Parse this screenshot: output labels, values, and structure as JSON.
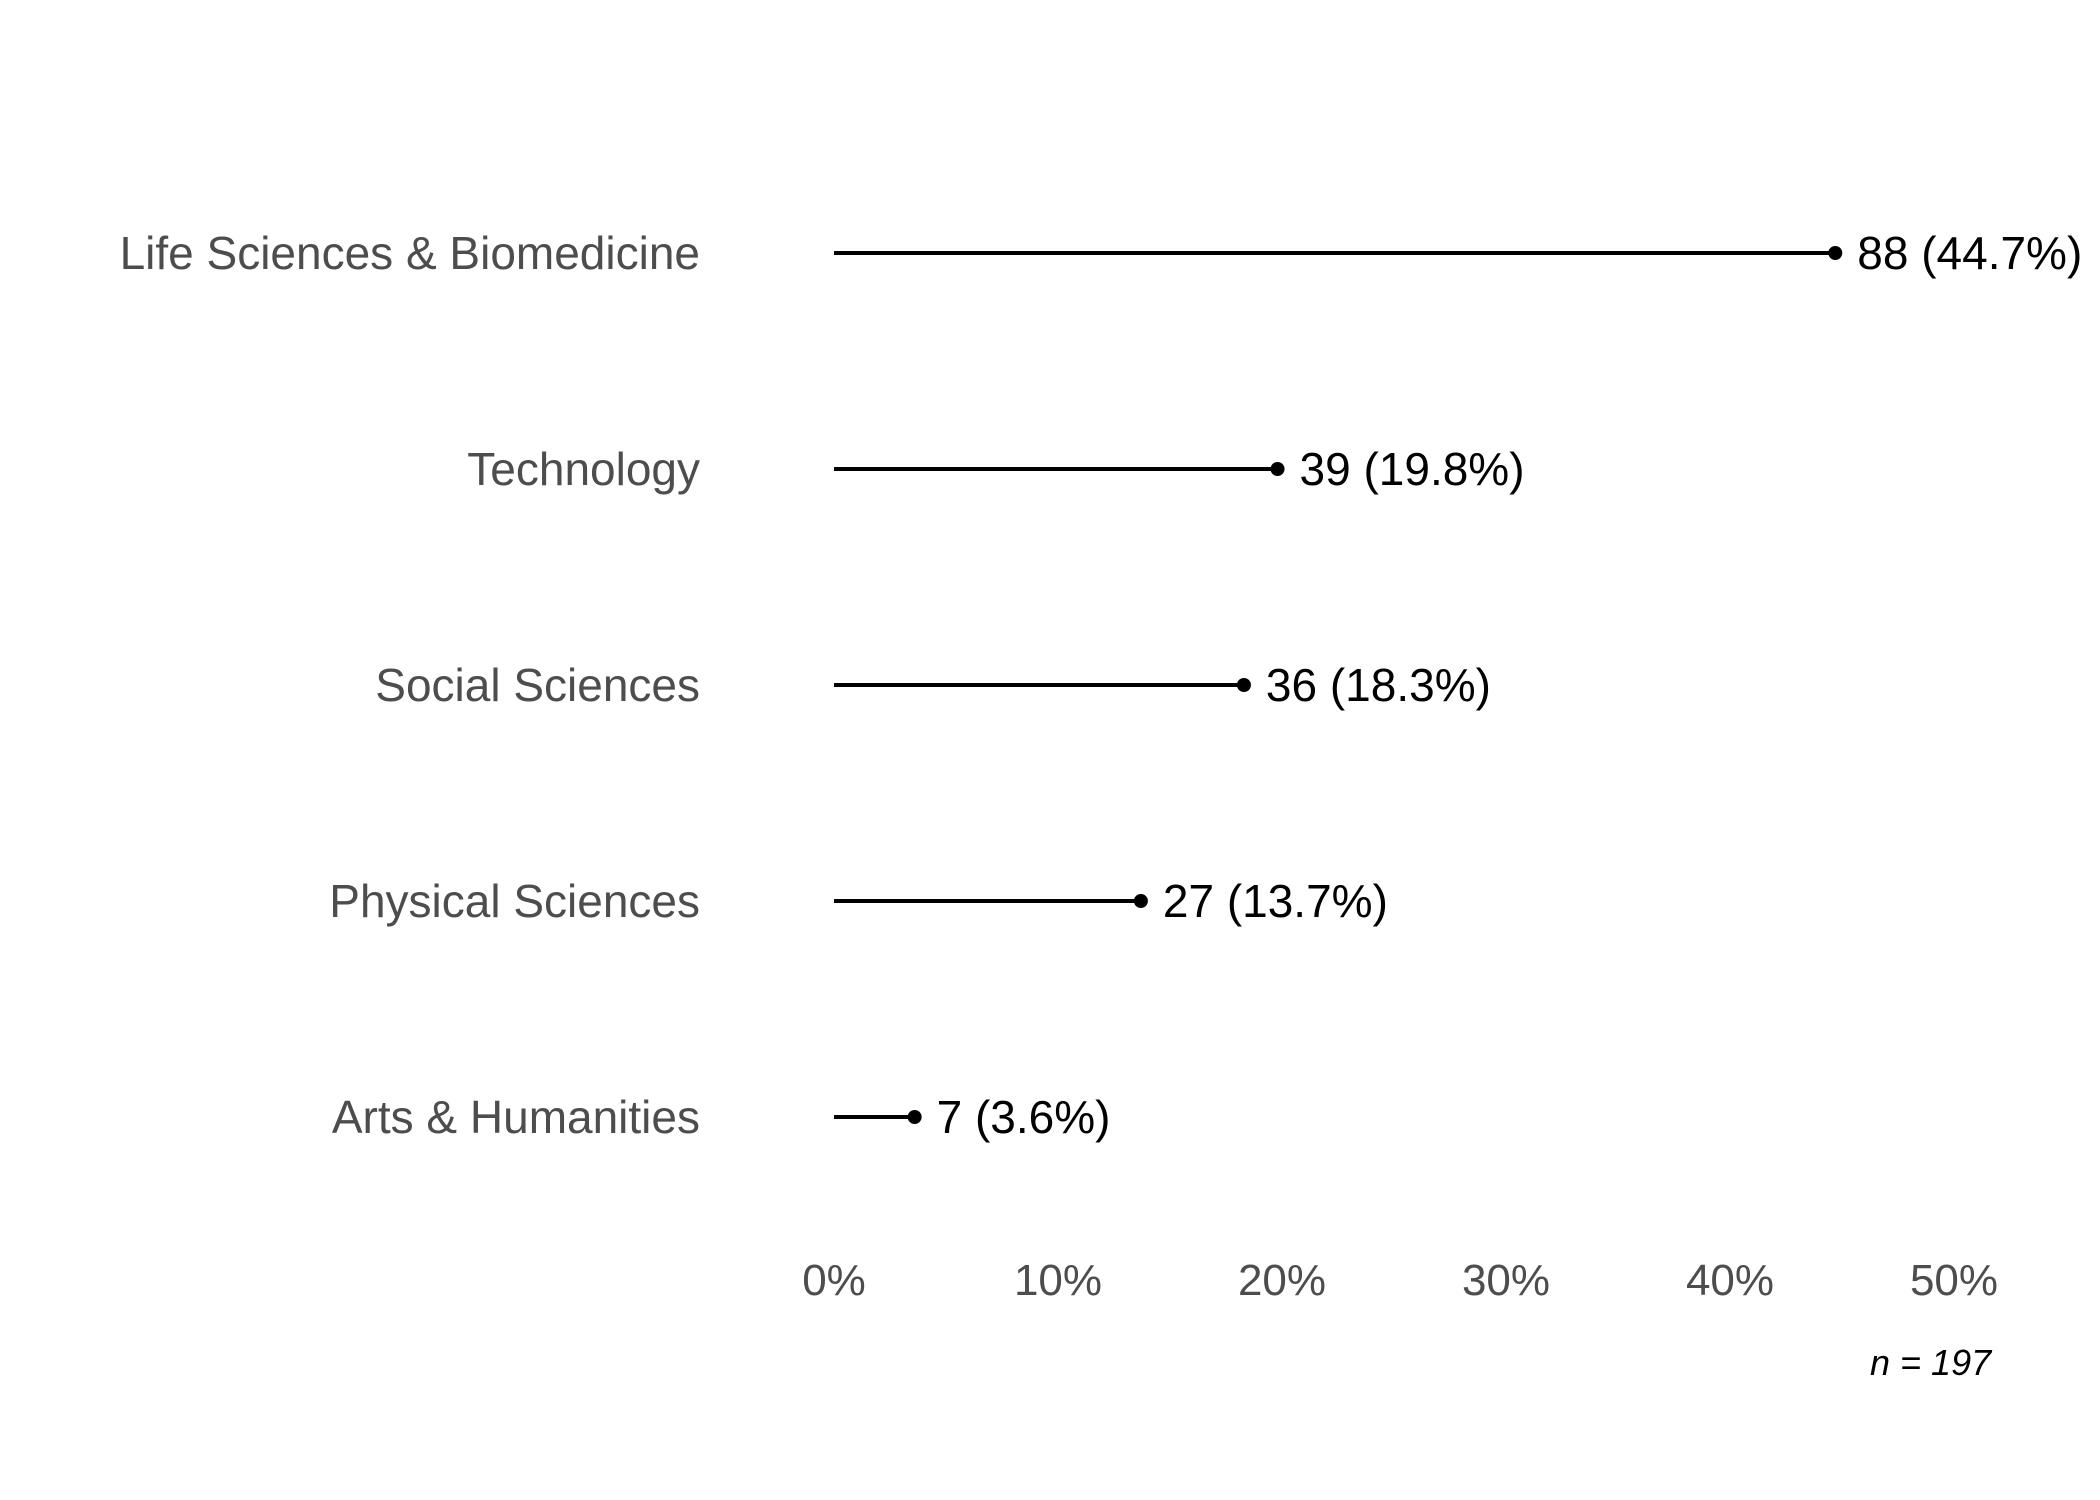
{
  "chart_data": {
    "type": "lollipop",
    "categories": [
      "Life Sciences & Biomedicine",
      "Technology",
      "Social Sciences",
      "Physical Sciences",
      "Arts & Humanities"
    ],
    "counts": [
      88,
      39,
      36,
      27,
      7
    ],
    "percents": [
      44.7,
      19.8,
      18.3,
      13.7,
      3.6
    ],
    "value_labels": [
      "88 (44.7%)",
      "39 (19.8%)",
      "36 (18.3%)",
      "27 (13.7%)",
      "7 (3.6%)"
    ],
    "x_ticks": [
      0,
      10,
      20,
      30,
      40,
      50
    ],
    "x_tick_labels": [
      "0%",
      "10%",
      "20%",
      "30%",
      "40%",
      "50%"
    ],
    "xlim": [
      0,
      50
    ],
    "grid": false,
    "note": "n = 197",
    "colors": {
      "stem": "#000000",
      "category_text": "#4d4d4d",
      "value_text": "#000000"
    }
  }
}
